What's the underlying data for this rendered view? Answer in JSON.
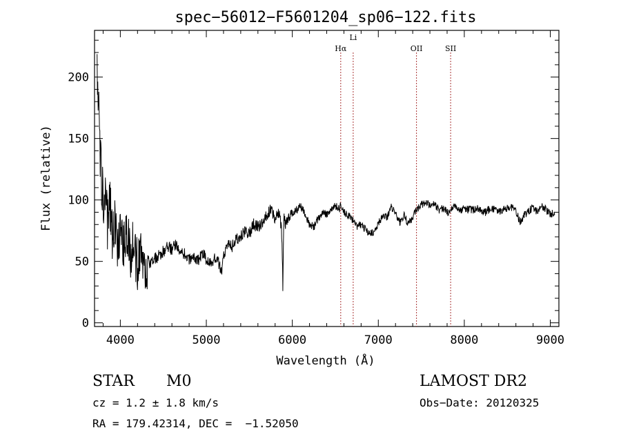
{
  "chart_data": {
    "type": "line",
    "title": "spec−56012−F5601204_sp06−122.fits",
    "xlabel": "Wavelength (Å)",
    "ylabel": "Flux (relative)",
    "xlim": [
      3700,
      9100
    ],
    "ylim": [
      -3,
      238
    ],
    "xticks": [
      4000,
      5000,
      6000,
      7000,
      8000,
      9000
    ],
    "yticks": [
      0,
      50,
      100,
      150,
      200
    ],
    "series": [
      {
        "name": "flux",
        "x": [
          3730,
          3750,
          3770,
          3790,
          3810,
          3830,
          3850,
          3880,
          3910,
          3940,
          3970,
          4000,
          4040,
          4080,
          4120,
          4160,
          4200,
          4250,
          4290,
          4320,
          4360,
          4400,
          4450,
          4500,
          4550,
          4600,
          4650,
          4700,
          4750,
          4800,
          4850,
          4900,
          4950,
          5000,
          5050,
          5100,
          5150,
          5180,
          5200,
          5230,
          5260,
          5300,
          5350,
          5400,
          5450,
          5500,
          5550,
          5600,
          5650,
          5700,
          5750,
          5800,
          5850,
          5880,
          5890,
          5895,
          5900,
          5920,
          5950,
          6000,
          6050,
          6100,
          6150,
          6200,
          6250,
          6300,
          6350,
          6400,
          6450,
          6500,
          6550,
          6563,
          6600,
          6650,
          6700,
          6750,
          6800,
          6850,
          6900,
          6950,
          7000,
          7050,
          7100,
          7150,
          7200,
          7250,
          7300,
          7350,
          7400,
          7450,
          7500,
          7550,
          7600,
          7650,
          7700,
          7750,
          7800,
          7850,
          7900,
          7950,
          8000,
          8050,
          8100,
          8150,
          8200,
          8250,
          8300,
          8350,
          8400,
          8450,
          8500,
          8550,
          8600,
          8650,
          8700,
          8750,
          8800,
          8850,
          8900,
          8950,
          9000,
          9050
        ],
        "values": [
          200,
          170,
          130,
          110,
          95,
          120,
          80,
          100,
          70,
          90,
          55,
          75,
          60,
          70,
          55,
          65,
          45,
          55,
          40,
          50,
          48,
          52,
          55,
          58,
          62,
          60,
          65,
          58,
          56,
          52,
          55,
          50,
          57,
          52,
          50,
          52,
          48,
          40,
          55,
          62,
          65,
          62,
          68,
          70,
          75,
          72,
          80,
          78,
          82,
          88,
          92,
          85,
          90,
          70,
          30,
          60,
          85,
          80,
          84,
          90,
          92,
          95,
          88,
          80,
          78,
          85,
          90,
          88,
          92,
          95,
          93,
          96,
          90,
          88,
          84,
          78,
          80,
          76,
          72,
          74,
          80,
          88,
          85,
          95,
          90,
          82,
          88,
          80,
          86,
          92,
          96,
          98,
          96,
          97,
          92,
          93,
          90,
          92,
          95,
          91,
          93,
          92,
          92,
          94,
          91,
          90,
          93,
          92,
          90,
          92,
          93,
          94,
          90,
          82,
          88,
          91,
          94,
          90,
          95,
          92,
          88,
          90
        ]
      }
    ],
    "lines": [
      {
        "label": "Hα",
        "wavelength": 6563
      },
      {
        "label": "Li",
        "wavelength": 6708
      },
      {
        "label": "OII",
        "wavelength": 7444
      },
      {
        "label": "SII",
        "wavelength": 7841
      }
    ],
    "line_color": "#a83232"
  },
  "info": {
    "class_label": "STAR",
    "subclass_label": "M0",
    "redshift_line": "cz = 1.2 ± 1.8 km/s",
    "coords_line": "RA = 179.42314, DEC =  −1.52050",
    "survey": "LAMOST DR2",
    "obs_date_line": "Obs−Date: 20120325"
  }
}
